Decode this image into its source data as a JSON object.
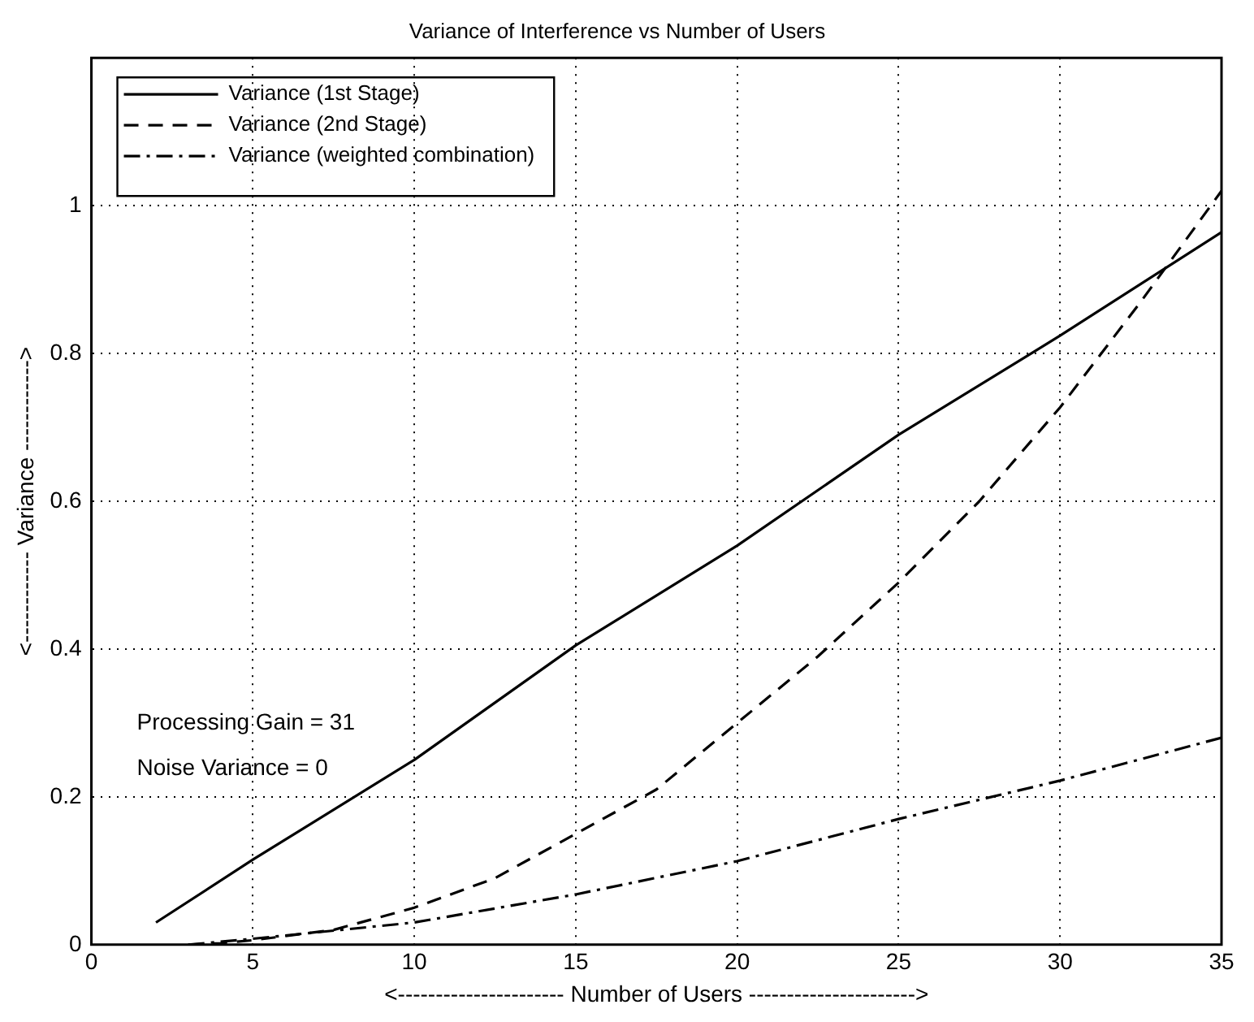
{
  "chart_data": {
    "type": "line",
    "title": "Variance of Interference vs Number of Users",
    "xlabel": "<---------------------- Number of Users ---------------------->",
    "ylabel": "<------------ Variance ------------>",
    "xlim": [
      0,
      35
    ],
    "xticks": [
      0,
      5,
      10,
      15,
      20,
      25,
      30,
      35
    ],
    "ylim": [
      0,
      1.2
    ],
    "yticks": [
      0,
      0.2,
      0.4,
      0.6,
      0.8,
      1
    ],
    "grid": true,
    "legend": "top left",
    "marker": "none",
    "annotations": [
      "Processing Gain = 31",
      "Noise Variance = 0"
    ],
    "series": [
      {
        "name": "Variance (1st Stage)",
        "color": "#000000",
        "line_style": "solid",
        "x": [
          2,
          5,
          10,
          15,
          20,
          25,
          30,
          35
        ],
        "values": [
          0.03,
          0.115,
          0.25,
          0.405,
          0.54,
          0.69,
          0.824,
          0.964
        ]
      },
      {
        "name": "Variance (2nd Stage)",
        "color": "#000000",
        "line_style": "dashed",
        "x": [
          3,
          4,
          5,
          7.5,
          10,
          12.5,
          15,
          17.5,
          20,
          22.5,
          25,
          27.5,
          30,
          32.5,
          35
        ],
        "values": [
          0,
          0.002,
          0.006,
          0.02,
          0.05,
          0.09,
          0.15,
          0.21,
          0.3,
          0.39,
          0.49,
          0.6,
          0.727,
          0.87,
          1.02
        ]
      },
      {
        "name": "Variance (weighted combination)",
        "color": "#000000",
        "line_style": "dashdot",
        "x": [
          3,
          5,
          10,
          15,
          20,
          25,
          30,
          35
        ],
        "values": [
          0,
          0.008,
          0.03,
          0.068,
          0.113,
          0.17,
          0.222,
          0.28
        ]
      }
    ]
  }
}
